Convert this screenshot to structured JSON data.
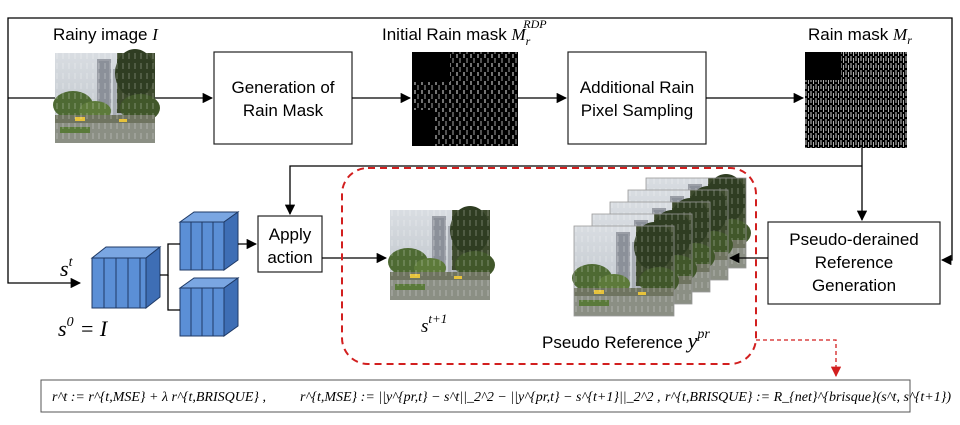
{
  "labels": {
    "rainy_image": "Rainy image",
    "rainy_image_sym": "I",
    "initial_rain_mask": "Initial Rain mask",
    "initial_rain_mask_sym": "M",
    "initial_rain_mask_sub": "r",
    "initial_rain_mask_sup": "RDP",
    "rain_mask": "Rain mask",
    "rain_mask_sym": "M",
    "rain_mask_sub": "r",
    "state": "s",
    "state_sup": "t",
    "state0": "s",
    "state0_sup": "0",
    "state0_eq": "= I",
    "next_state": "s",
    "next_state_sup": "t+1",
    "pseudo_reference": "Pseudo Reference",
    "pseudo_reference_sym": "y",
    "pseudo_reference_sup": "pr"
  },
  "boxes": {
    "generation_line1": "Generation of",
    "generation_line2": "Rain Mask",
    "sampling_line1": "Additional Rain",
    "sampling_line2": "Pixel Sampling",
    "apply_line1": "Apply",
    "apply_line2": "action",
    "pseudo_line1": "Pseudo-derained",
    "pseudo_line2": "Reference",
    "pseudo_line3": "Generation"
  },
  "formula": {
    "r1": "r^t := r^{t,MSE} + λ r^{t,BRISQUE} ,",
    "r2": "r^{t,MSE} := ||y^{pr,t} − s^t||_2^2 − ||y^{pr,t} − s^{t+1}||_2^2 ,",
    "r3": "r^{t,BRISQUE} := R_{net}^{brisque}(s^t, s^{t+1})"
  },
  "colors": {
    "cube_face": "#5b8fd6",
    "cube_side": "#3e6eb5",
    "highlight_dash": "#d21f1f",
    "mask_black": "#000000"
  }
}
